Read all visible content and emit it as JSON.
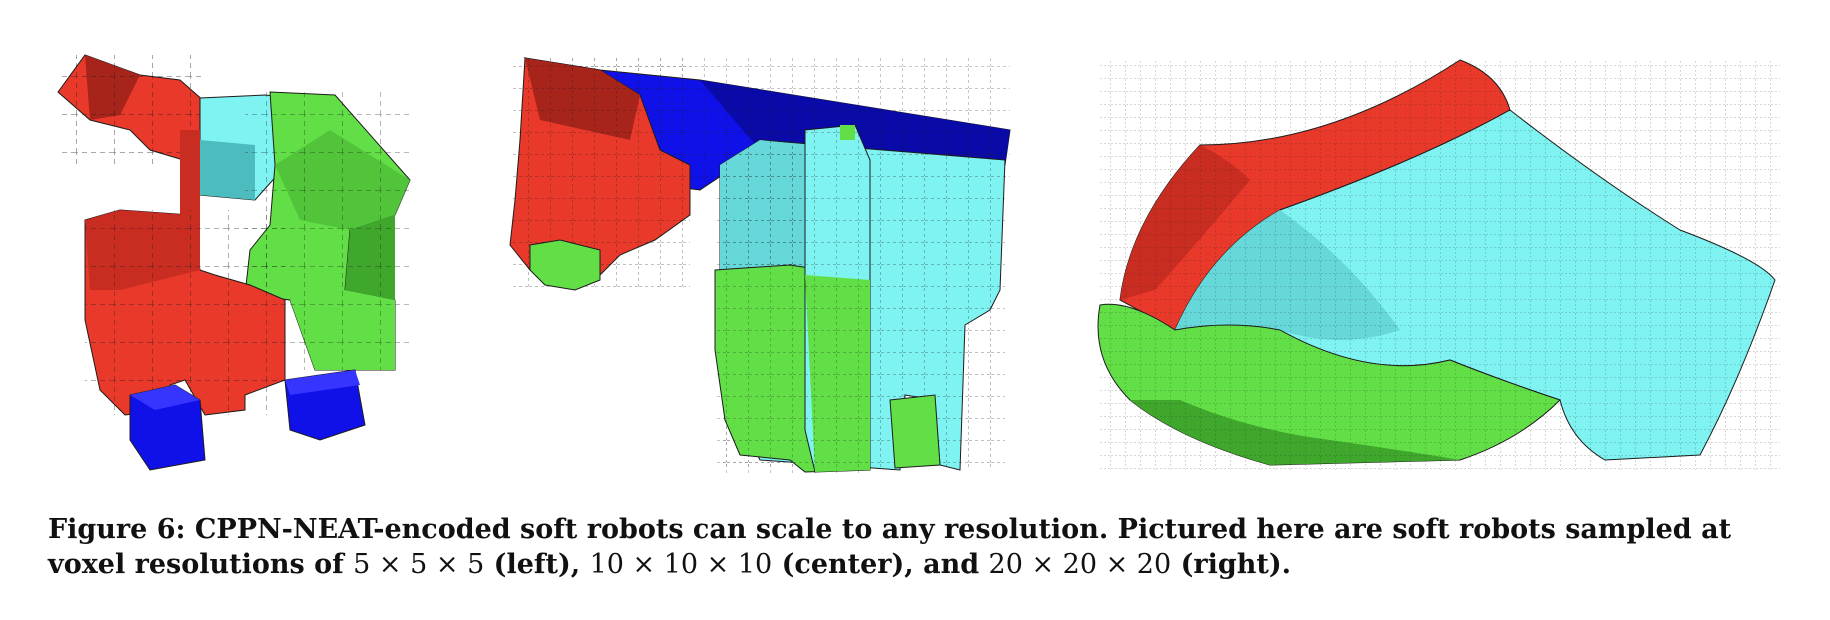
{
  "colors": {
    "red": "#e8392a",
    "red_dark": "#a7241b",
    "red_mid": "#c92d22",
    "green": "#62df46",
    "green_dark": "#3fa82c",
    "green_mid": "#52c43a",
    "cyan": "#7ff2f2",
    "cyan_dark": "#4dbcbf",
    "cyan_mid": "#66d8da",
    "blue": "#1010e8",
    "blue_dark": "#0a0aa8",
    "edge": "#1c1c1c"
  },
  "panels": [
    {
      "id": "left",
      "resolution": "5 × 5 × 5"
    },
    {
      "id": "center",
      "resolution": "10 × 10 × 10"
    },
    {
      "id": "right",
      "resolution": "20 × 20 × 20"
    }
  ],
  "caption": {
    "label": "Figure 6:",
    "sentence1": "CPPN-NEAT-encoded soft robots can scale to any resolution.",
    "sentence2_start": "Pictured here are soft robots sampled at voxel resolutions of",
    "res_left": "5 × 5 × 5",
    "left_word": "(left),",
    "res_center": "10 × 10 × 10",
    "center_word": "(center), and",
    "res_right": "20 × 20 × 20",
    "right_word": "(right)."
  }
}
